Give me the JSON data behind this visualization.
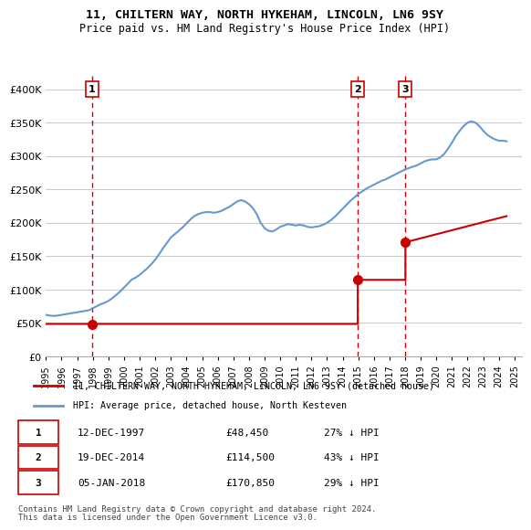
{
  "title": "11, CHILTERN WAY, NORTH HYKEHAM, LINCOLN, LN6 9SY",
  "subtitle": "Price paid vs. HM Land Registry's House Price Index (HPI)",
  "ylabel_ticks": [
    "£0",
    "£50K",
    "£100K",
    "£150K",
    "£200K",
    "£250K",
    "£300K",
    "£350K",
    "£400K"
  ],
  "ytick_values": [
    0,
    50000,
    100000,
    150000,
    200000,
    250000,
    300000,
    350000,
    400000
  ],
  "ylim": [
    0,
    420000
  ],
  "xlim_start": 1995.0,
  "xlim_end": 2025.5,
  "sale_events": [
    {
      "num": 1,
      "year": 1997.95,
      "price": 48450,
      "label": "1"
    },
    {
      "num": 2,
      "year": 2014.97,
      "price": 114500,
      "label": "2"
    },
    {
      "num": 3,
      "year": 2018.02,
      "price": 170850,
      "label": "3"
    }
  ],
  "hpi_color": "#6699cc",
  "sale_color": "#cc0000",
  "dashed_color": "#cc0000",
  "bg_color": "#ffffff",
  "grid_color": "#cccccc",
  "legend_sale_label": "11, CHILTERN WAY, NORTH HYKEHAM, LINCOLN, LN6 9SY (detached house)",
  "legend_hpi_label": "HPI: Average price, detached house, North Kesteven",
  "table_rows": [
    {
      "num": "1",
      "date": "12-DEC-1997",
      "price": "£48,450",
      "hpi": "27% ↓ HPI"
    },
    {
      "num": "2",
      "date": "19-DEC-2014",
      "price": "£114,500",
      "hpi": "43% ↓ HPI"
    },
    {
      "num": "3",
      "date": "05-JAN-2018",
      "price": "£170,850",
      "hpi": "29% ↓ HPI"
    }
  ],
  "footer1": "Contains HM Land Registry data © Crown copyright and database right 2024.",
  "footer2": "This data is licensed under the Open Government Licence v3.0.",
  "hpi_data_x": [
    1995.0,
    1995.25,
    1995.5,
    1995.75,
    1996.0,
    1996.25,
    1996.5,
    1996.75,
    1997.0,
    1997.25,
    1997.5,
    1997.75,
    1998.0,
    1998.25,
    1998.5,
    1998.75,
    1999.0,
    1999.25,
    1999.5,
    1999.75,
    2000.0,
    2000.25,
    2000.5,
    2000.75,
    2001.0,
    2001.25,
    2001.5,
    2001.75,
    2002.0,
    2002.25,
    2002.5,
    2002.75,
    2003.0,
    2003.25,
    2003.5,
    2003.75,
    2004.0,
    2004.25,
    2004.5,
    2004.75,
    2005.0,
    2005.25,
    2005.5,
    2005.75,
    2006.0,
    2006.25,
    2006.5,
    2006.75,
    2007.0,
    2007.25,
    2007.5,
    2007.75,
    2008.0,
    2008.25,
    2008.5,
    2008.75,
    2009.0,
    2009.25,
    2009.5,
    2009.75,
    2010.0,
    2010.25,
    2010.5,
    2010.75,
    2011.0,
    2011.25,
    2011.5,
    2011.75,
    2012.0,
    2012.25,
    2012.5,
    2012.75,
    2013.0,
    2013.25,
    2013.5,
    2013.75,
    2014.0,
    2014.25,
    2014.5,
    2014.75,
    2015.0,
    2015.25,
    2015.5,
    2015.75,
    2016.0,
    2016.25,
    2016.5,
    2016.75,
    2017.0,
    2017.25,
    2017.5,
    2017.75,
    2018.0,
    2018.25,
    2018.5,
    2018.75,
    2019.0,
    2019.25,
    2019.5,
    2019.75,
    2020.0,
    2020.25,
    2020.5,
    2020.75,
    2021.0,
    2021.25,
    2021.5,
    2021.75,
    2022.0,
    2022.25,
    2022.5,
    2022.75,
    2023.0,
    2023.25,
    2023.5,
    2023.75,
    2024.0,
    2024.25,
    2024.5
  ],
  "hpi_data_y": [
    62000,
    61000,
    60500,
    61000,
    62000,
    63000,
    64000,
    65000,
    66000,
    67000,
    68000,
    69000,
    72000,
    75000,
    78000,
    80000,
    83000,
    87000,
    92000,
    97000,
    103000,
    109000,
    115000,
    118000,
    122000,
    127000,
    132000,
    138000,
    145000,
    153000,
    162000,
    170000,
    178000,
    183000,
    188000,
    193000,
    199000,
    205000,
    210000,
    213000,
    215000,
    216000,
    216000,
    215000,
    216000,
    218000,
    221000,
    224000,
    228000,
    232000,
    234000,
    232000,
    228000,
    222000,
    213000,
    200000,
    192000,
    188000,
    187000,
    190000,
    194000,
    196000,
    198000,
    197000,
    196000,
    197000,
    196000,
    194000,
    193000,
    194000,
    195000,
    197000,
    200000,
    204000,
    209000,
    215000,
    221000,
    227000,
    233000,
    238000,
    243000,
    247000,
    251000,
    254000,
    257000,
    260000,
    263000,
    265000,
    268000,
    271000,
    274000,
    277000,
    280000,
    282000,
    284000,
    286000,
    289000,
    292000,
    294000,
    295000,
    295000,
    298000,
    303000,
    311000,
    320000,
    330000,
    338000,
    345000,
    350000,
    352000,
    350000,
    345000,
    338000,
    332000,
    328000,
    325000,
    323000,
    323000,
    322000
  ],
  "sale_line_x": [
    1995.0,
    1997.95,
    1997.95,
    2014.97,
    2014.97,
    2018.02,
    2018.02,
    2024.5
  ],
  "sale_line_y": [
    48450,
    48450,
    48450,
    48450,
    114500,
    114500,
    170850,
    210000
  ],
  "xtick_years": [
    1995,
    1996,
    1997,
    1998,
    1999,
    2000,
    2001,
    2002,
    2003,
    2004,
    2005,
    2006,
    2007,
    2008,
    2009,
    2010,
    2011,
    2012,
    2013,
    2014,
    2015,
    2016,
    2017,
    2018,
    2019,
    2020,
    2021,
    2022,
    2023,
    2024,
    2025
  ]
}
